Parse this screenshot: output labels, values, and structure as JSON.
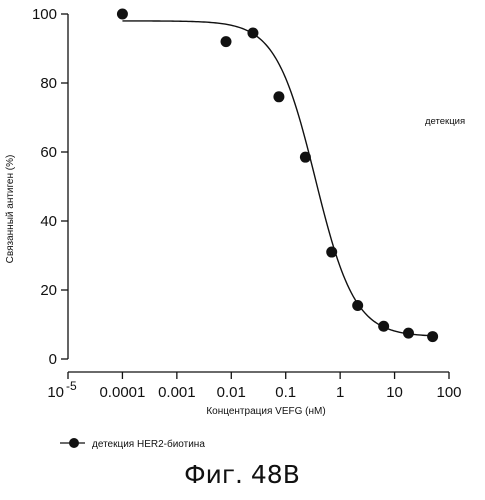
{
  "chart_data": {
    "type": "scatter",
    "xscale": "log",
    "xlim": [
      1e-05,
      100
    ],
    "ylim": [
      0,
      100
    ],
    "xlabel": "Концентрация VEFG (нМ)",
    "ylabel": "Связанный антиген (%)",
    "x_ticks": [
      "10",
      "-5",
      "0.0001",
      "0.001",
      "0.01",
      "0.1",
      "1",
      "10",
      "100"
    ],
    "y_ticks": [
      "0",
      "20",
      "40",
      "60",
      "80",
      "100"
    ],
    "annotation": "детекция",
    "series": [
      {
        "name": "детекция HER2-биотина",
        "x": [
          0.0001,
          0.008,
          0.025,
          0.075,
          0.23,
          0.7,
          2.1,
          6.3,
          18,
          50
        ],
        "y": [
          100,
          92,
          94.5,
          76,
          58.5,
          31,
          15.5,
          9.5,
          7.5,
          6.5
        ]
      }
    ],
    "fit": {
      "top": 98,
      "bottom": 6.5,
      "ic50": 0.35,
      "hill": 1.2
    },
    "figure_label": "Фиг. 48B"
  }
}
